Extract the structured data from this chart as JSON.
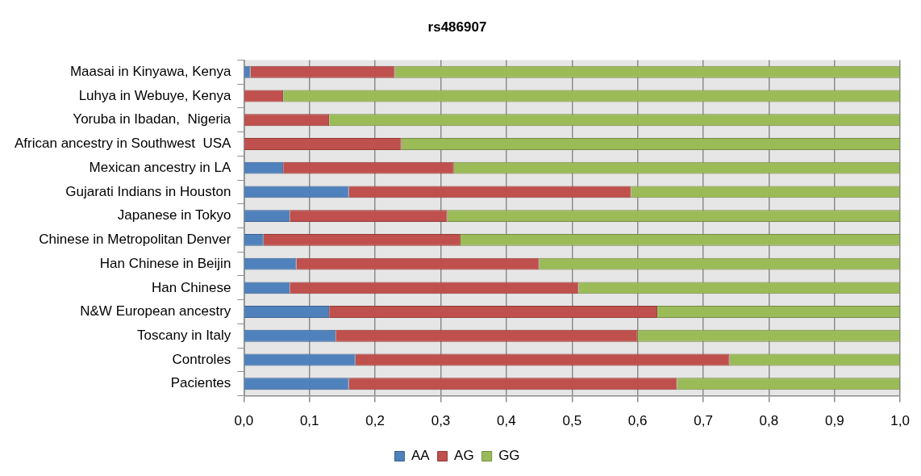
{
  "chart_data": {
    "type": "bar",
    "title": "rs486907",
    "orientation": "horizontal",
    "stacked": true,
    "categories": [
      "Maasai in Kinyawa, Kenya",
      "Luhya in Webuye, Kenya",
      "Yoruba in Ibadan,  Nigeria",
      "African ancestry in Southwest  USA",
      "Mexican ancestry in LA",
      "Gujarati Indians in Houston",
      "Japanese in Tokyo",
      "Chinese in Metropolitan Denver",
      "Han Chinese in Beijin",
      "Han Chinese",
      "N&W European ancestry",
      "Toscany in Italy",
      "Controles",
      "Pacientes"
    ],
    "series": [
      {
        "name": "AA",
        "color": "#4f81bd",
        "values": [
          0.01,
          0,
          0,
          0,
          0.06,
          0.16,
          0.07,
          0.03,
          0.08,
          0.07,
          0.13,
          0.14,
          0.17,
          0.16
        ]
      },
      {
        "name": "AG",
        "color": "#c0504d",
        "values": [
          0.22,
          0.06,
          0.13,
          0.24,
          0.26,
          0.43,
          0.24,
          0.3,
          0.37,
          0.44,
          0.5,
          0.46,
          0.57,
          0.5
        ]
      },
      {
        "name": "GG",
        "color": "#9bbb59",
        "values": [
          0.77,
          0.94,
          0.87,
          0.76,
          0.68,
          0.41,
          0.69,
          0.67,
          0.55,
          0.49,
          0.37,
          0.4,
          0.26,
          0.34
        ]
      }
    ],
    "xlim": [
      0,
      1
    ],
    "xticks": [
      {
        "value": 0,
        "label": "0,0"
      },
      {
        "value": 0.1,
        "label": "0,1"
      },
      {
        "value": 0.2,
        "label": "0,2"
      },
      {
        "value": 0.3,
        "label": "0,3"
      },
      {
        "value": 0.4,
        "label": "0,4"
      },
      {
        "value": 0.5,
        "label": "0,5"
      },
      {
        "value": 0.6,
        "label": "0,6"
      },
      {
        "value": 0.7,
        "label": "0,7"
      },
      {
        "value": 0.8,
        "label": "0,8"
      },
      {
        "value": 0.9,
        "label": "0,9"
      },
      {
        "value": 1,
        "label": "1,0"
      }
    ],
    "grid": "x",
    "legend": "bottom"
  }
}
